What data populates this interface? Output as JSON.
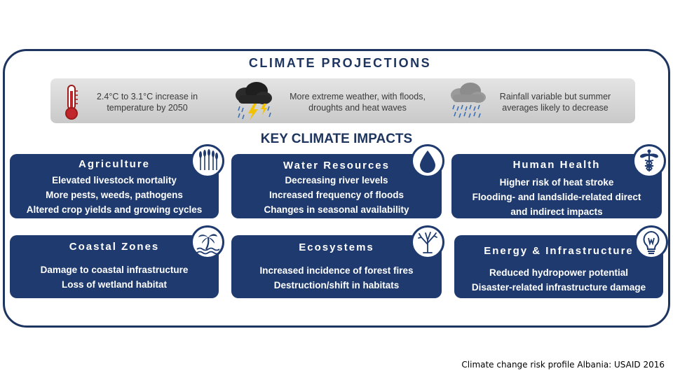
{
  "projections": {
    "title": "CLIMATE PROJECTIONS",
    "items": [
      {
        "icon": "thermometer-icon",
        "line1": "2.4°C to 3.1°C increase in",
        "line2": "temperature by 2050"
      },
      {
        "icon": "storm-cloud-icon",
        "line1": "More extreme weather, with floods,",
        "line2": "droughts and heat waves"
      },
      {
        "icon": "rain-cloud-icon",
        "line1": "Rainfall variable but summer",
        "line2": "averages likely to decrease"
      }
    ]
  },
  "impacts": {
    "title": "KEY CLIMATE IMPACTS",
    "cards": [
      {
        "title": "Agriculture",
        "icon": "wheat-icon",
        "lines": [
          "Elevated livestock mortality",
          "More pests, weeds, pathogens",
          "Altered crop yields and growing cycles"
        ]
      },
      {
        "title": "Water Resources",
        "icon": "water-drop-icon",
        "lines": [
          "Decreasing river levels",
          "Increased frequency of floods",
          "Changes in seasonal availability"
        ]
      },
      {
        "title": "Human Health",
        "icon": "caduceus-icon",
        "lines": [
          "Higher risk of heat stroke",
          "Flooding- and landslide-related direct",
          "and indirect impacts"
        ]
      },
      {
        "title": "Coastal Zones",
        "icon": "palm-tree-icon",
        "lines": [
          "Damage to coastal infrastructure",
          "Loss of wetland habitat"
        ]
      },
      {
        "title": "Ecosystems",
        "icon": "tree-icon",
        "lines": [
          "Increased incidence of forest fires",
          "Destruction/shift in habitats"
        ]
      },
      {
        "title": "Energy & Infrastructure",
        "icon": "light-bulb-icon",
        "lines": [
          "Reduced hydropower potential",
          "Disaster-related infrastructure damage"
        ]
      }
    ]
  },
  "citation": "Climate change risk profile Albania: USAID 2016",
  "colors": {
    "navy": "#1e3a6e",
    "frame": "#1e3560",
    "band": "#d4d4d4",
    "text_on_card": "#ffffff"
  }
}
